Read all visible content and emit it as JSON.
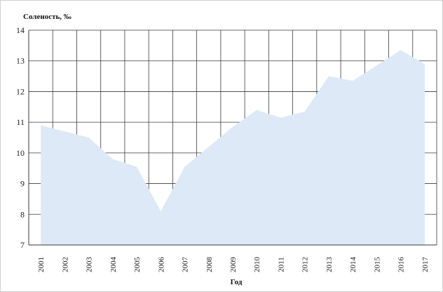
{
  "chart_data": {
    "type": "area",
    "ylabel": "Соленость, ‰",
    "xlabel": "Год",
    "x": [
      "2001",
      "2002",
      "2003",
      "2004",
      "2005",
      "2006",
      "2007",
      "2008",
      "2009",
      "2010",
      "2011",
      "2012",
      "2013",
      "2014",
      "2015",
      "2016",
      "2017"
    ],
    "values": [
      10.9,
      10.7,
      10.5,
      9.8,
      9.55,
      8.1,
      9.55,
      10.2,
      10.85,
      11.4,
      11.15,
      11.35,
      12.5,
      12.35,
      12.85,
      13.35,
      12.9
    ],
    "ylim": [
      7,
      14
    ],
    "yticks": [
      "7",
      "8",
      "9",
      "10",
      "11",
      "12",
      "13",
      "14"
    ],
    "grid": true,
    "colors": {
      "area_fill": "#dde9f6",
      "grid": "#3a3a3a"
    }
  }
}
